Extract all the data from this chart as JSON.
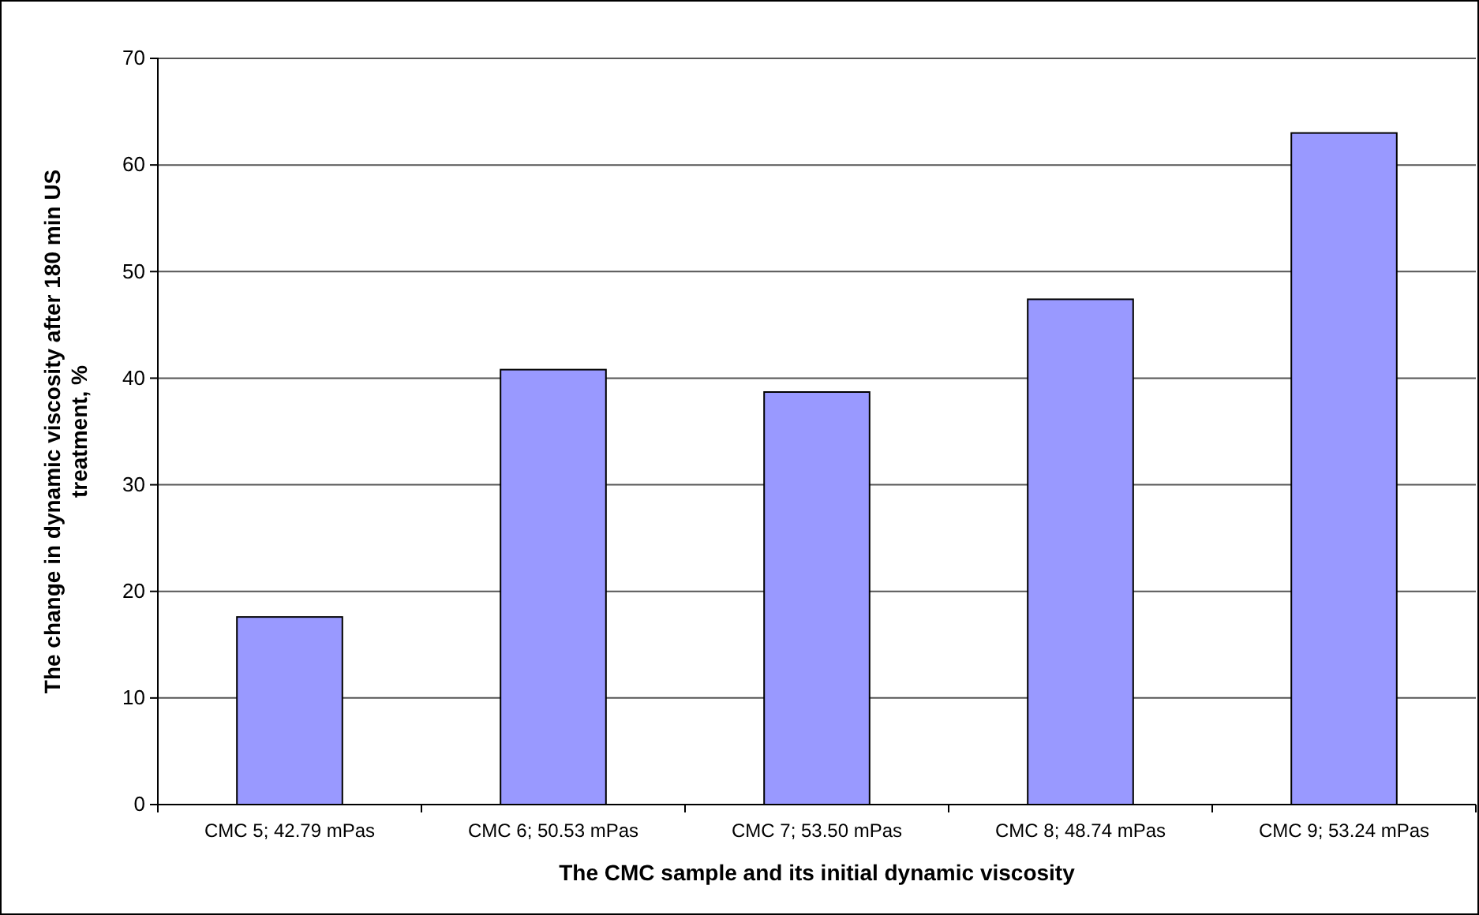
{
  "chart_data": {
    "type": "bar",
    "xlabel": "The CMC sample and its initial dynamic viscosity",
    "ylabel": "The change in dynamic viscosity after 180 min US treatment, %",
    "categories": [
      "CMC 5; 42.79 mPas",
      "CMC 6; 50.53 mPas",
      "CMC 7; 53.50 mPas",
      "CMC 8; 48.74 mPas",
      "CMC 9; 53.24 mPas"
    ],
    "values": [
      17.6,
      40.8,
      38.7,
      47.4,
      63.0
    ],
    "color": "#9999ff",
    "ylim": [
      0,
      70
    ],
    "yticks": [
      0,
      10,
      20,
      30,
      40,
      50,
      60,
      70
    ],
    "grid": "y"
  }
}
